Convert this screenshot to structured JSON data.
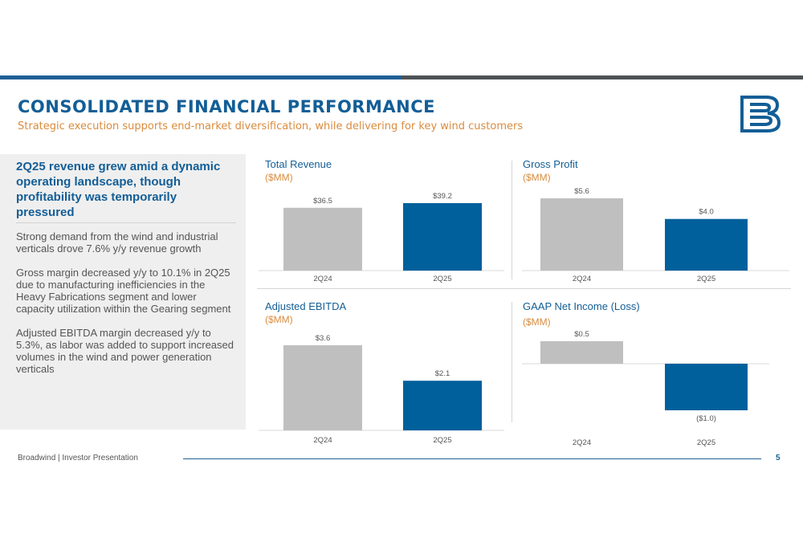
{
  "header": {
    "title": "CONSOLIDATED FINANCIAL PERFORMANCE",
    "subtitle": "Strategic execution supports end-market diversification, while delivering for key wind customers"
  },
  "sidebar": {
    "heading": "2Q25 revenue grew amid a dynamic operating landscape, though profitability was temporarily pressured",
    "paragraphs": [
      "Strong demand from the wind and industrial verticals drove 7.6% y/y revenue growth",
      "Gross margin decreased y/y to 10.1% in 2Q25 due to manufacturing inefficiencies in the Heavy Fabrications segment and lower capacity utilization within the Gearing segment",
      "Adjusted EBITDA margin decreased y/y to 5.3%, as labor was added to support increased volumes in the wind and power generation verticals"
    ]
  },
  "colors": {
    "accent_blue": "#135e96",
    "bar_current": "#00609c",
    "bar_prior": "#bfbfbf",
    "subtitle_orange": "#d98c3e"
  },
  "logo": {
    "icon": "broadwind-b-logo-icon"
  },
  "chart_data": [
    {
      "type": "bar",
      "title": "Total Revenue",
      "unit": "($MM)",
      "categories": [
        "2Q24",
        "2Q25"
      ],
      "values": [
        36.5,
        39.2
      ],
      "labels": [
        "$36.5",
        "$39.2"
      ]
    },
    {
      "type": "bar",
      "title": "Gross Profit",
      "unit": "($MM)",
      "categories": [
        "2Q24",
        "2Q25"
      ],
      "values": [
        5.6,
        4.0
      ],
      "labels": [
        "$5.6",
        "$4.0"
      ]
    },
    {
      "type": "bar",
      "title": "Adjusted EBITDA",
      "unit": "($MM)",
      "categories": [
        "2Q24",
        "2Q25"
      ],
      "values": [
        3.6,
        2.1
      ],
      "labels": [
        "$3.6",
        "$2.1"
      ]
    },
    {
      "type": "bar",
      "title": "GAAP Net Income (Loss)",
      "unit": "($MM)",
      "categories": [
        "2Q24",
        "2Q25"
      ],
      "values": [
        0.5,
        -1.0
      ],
      "labels": [
        "$0.5",
        "($1.0)"
      ]
    }
  ],
  "footer": {
    "left": "Broadwind  | Investor Presentation",
    "page": "5"
  }
}
